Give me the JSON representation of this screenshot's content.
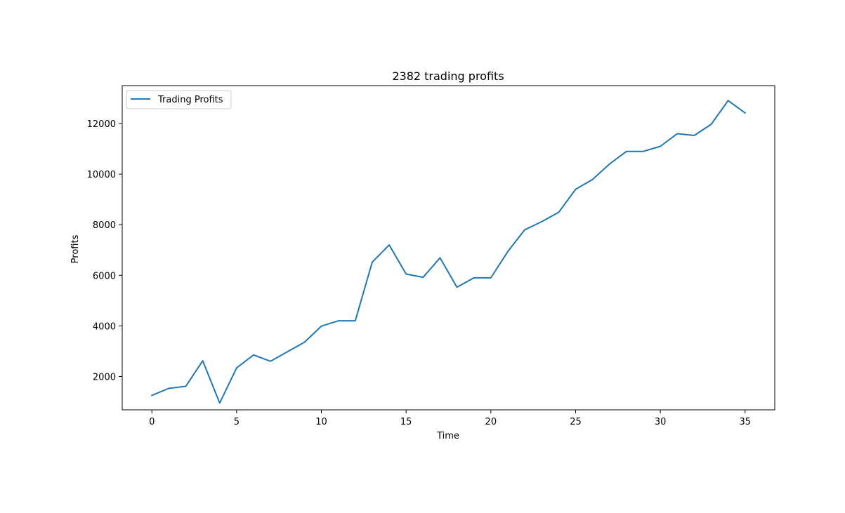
{
  "chart_data": {
    "type": "line",
    "title": "2382 trading profits",
    "xlabel": "Time",
    "ylabel": "Profits",
    "xlim": [
      -1.75,
      36.75
    ],
    "ylim": [
      680,
      13500
    ],
    "xticks": [
      0,
      5,
      10,
      15,
      20,
      25,
      30,
      35
    ],
    "yticks": [
      2000,
      4000,
      6000,
      8000,
      10000,
      12000
    ],
    "grid": false,
    "legend_position": "upper-left",
    "series": [
      {
        "name": "Trading Profits",
        "color": "#1f77b4",
        "x": [
          0,
          1,
          2,
          3,
          4,
          5,
          6,
          7,
          8,
          9,
          10,
          11,
          12,
          13,
          14,
          15,
          16,
          17,
          18,
          19,
          20,
          21,
          22,
          23,
          24,
          25,
          26,
          27,
          28,
          29,
          30,
          31,
          32,
          33,
          34,
          35
        ],
        "values": [
          1250,
          1530,
          1610,
          2620,
          950,
          2340,
          2850,
          2600,
          2980,
          3350,
          3990,
          4200,
          4200,
          6520,
          7200,
          6050,
          5920,
          6690,
          5530,
          5900,
          5900,
          6940,
          7800,
          8120,
          8490,
          9400,
          9790,
          10400,
          10900,
          10900,
          11100,
          11600,
          11530,
          11970,
          12910,
          12420
        ]
      }
    ]
  }
}
